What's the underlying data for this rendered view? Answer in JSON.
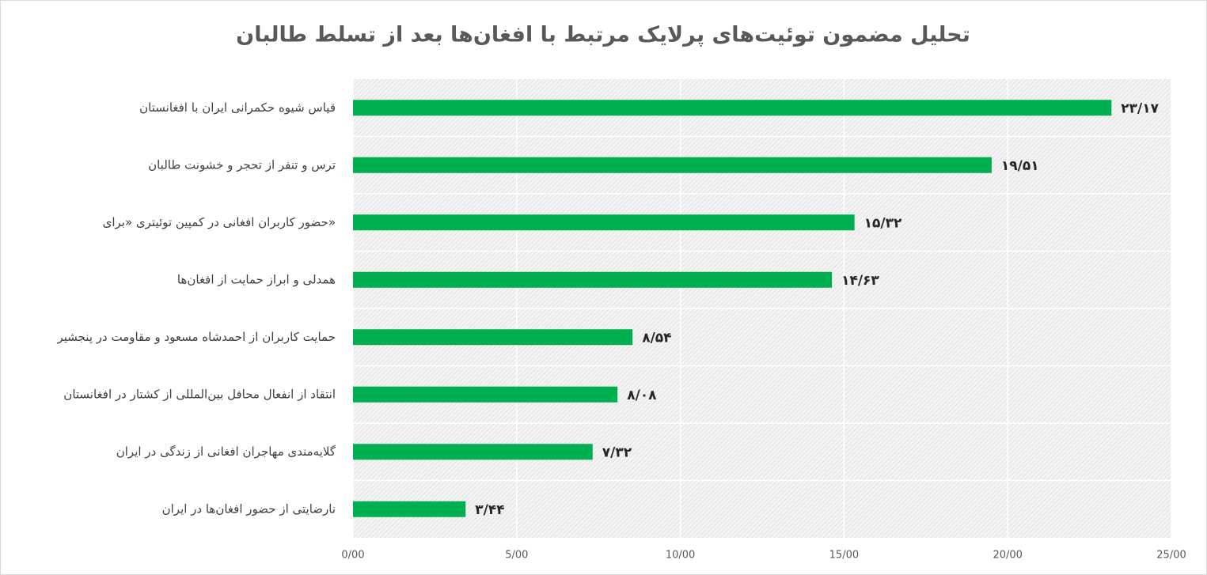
{
  "chart_data": {
    "type": "bar",
    "orientation": "horizontal",
    "title": "تحلیل مضمون توئیت‌های پرلایک مرتبط با افغان‌ها بعد از تسلط طالبان",
    "categories": [
      "قیاس شیوه حکمرانی ایران با افغانستان",
      "ترس و تنفر از تحجر و خشونت طالبان",
      "حضور کاربران افغانی در کمپین توئیتری «برای»",
      "همدلی و ابراز حمایت از افغان‌ها",
      "حمایت کاربران از احمدشاه مسعود و مقاومت در پنجشیر",
      "انتقاد از انفعال محافل بین‌المللی از کشتار در افغانستان",
      "گلایه‌مندی مهاجران افغانی از زندگی در ایران",
      "نارضایتی از حضور افغان‌ها در ایران"
    ],
    "values": [
      23.17,
      19.51,
      15.32,
      14.63,
      8.54,
      8.08,
      7.32,
      3.44
    ],
    "value_labels": [
      "۲۳/۱۷",
      "۱۹/۵۱",
      "۱۵/۳۲",
      "۱۴/۶۳",
      "۸/۵۴",
      "۸/۰۸",
      "۷/۳۲",
      "۳/۴۴"
    ],
    "color": "#00b050",
    "xlim": [
      0,
      25
    ],
    "xticks": [
      {
        "value": 0,
        "label": "0/00"
      },
      {
        "value": 5,
        "label": "5/00"
      },
      {
        "value": 10,
        "label": "10/00"
      },
      {
        "value": 15,
        "label": "15/00"
      },
      {
        "value": 20,
        "label": "20/00"
      },
      {
        "value": 25,
        "label": "25/00"
      }
    ],
    "grid": true
  }
}
